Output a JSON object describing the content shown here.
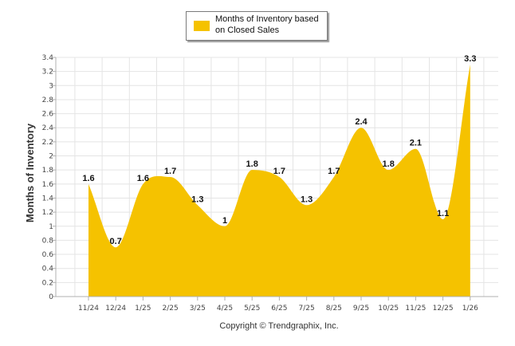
{
  "chart_data": {
    "type": "area",
    "title": "",
    "xlabel": "",
    "ylabel": "Months of Inventory",
    "categories": [
      "11/24",
      "12/24",
      "1/25",
      "2/25",
      "3/25",
      "4/25",
      "5/25",
      "6/25",
      "7/25",
      "8/25",
      "9/25",
      "10/25",
      "11/25",
      "12/25",
      "1/26"
    ],
    "series": [
      {
        "name": "Months of Inventory based on Closed Sales",
        "values": [
          1.6,
          0.7,
          1.6,
          1.7,
          1.3,
          1.0,
          1.8,
          1.7,
          1.3,
          1.7,
          2.4,
          1.8,
          2.1,
          1.1,
          3.3
        ],
        "labels": [
          "1.6",
          "0.7",
          "1.6",
          "1.7",
          "1.3",
          "1",
          "1.8",
          "1.7",
          "1.3",
          "1.7",
          "2.4",
          "1.8",
          "2.1",
          "1.1",
          "3.3"
        ]
      }
    ],
    "ylim": [
      0,
      3.4
    ],
    "yticks": [
      "0",
      "0.2",
      "0.4",
      "0.6",
      "0.8",
      "1",
      "1.2",
      "1.4",
      "1.6",
      "1.8",
      "2",
      "2.2",
      "2.4",
      "2.6",
      "2.8",
      "3",
      "3.2",
      "3.4"
    ],
    "grid": true,
    "legend": "top-center",
    "colors": {
      "fill": "#f5c200",
      "grid": "#e4e4e4",
      "axis": "#b0b0b0"
    }
  },
  "legend": {
    "label_line1": "Months of Inventory based",
    "label_line2": "on Closed Sales"
  },
  "footer": {
    "copyright": "Copyright © Trendgraphix, Inc."
  }
}
